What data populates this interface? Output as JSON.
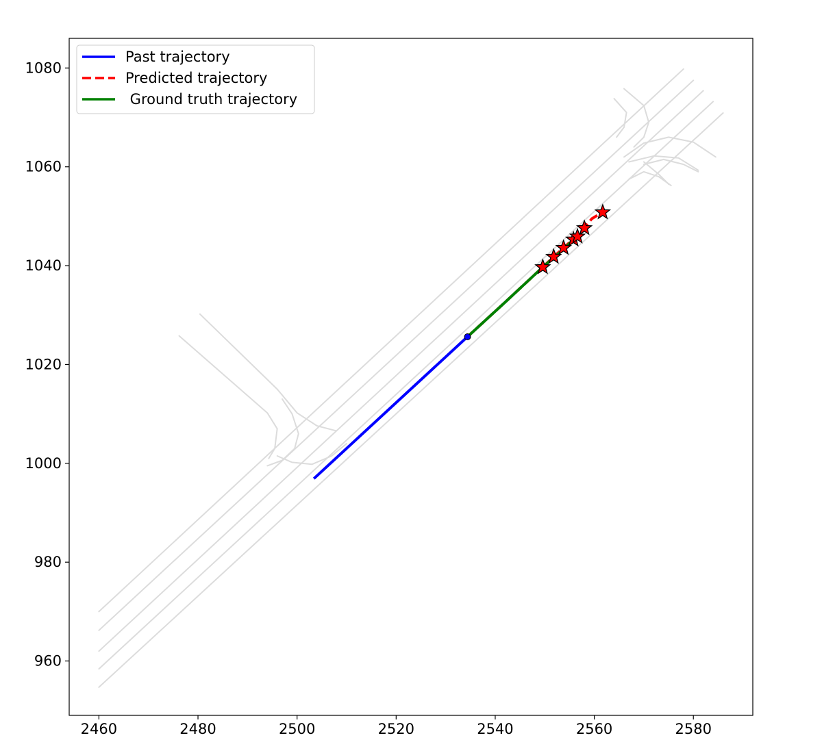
{
  "chart_data": {
    "type": "line",
    "title": "",
    "xlabel": "",
    "ylabel": "",
    "xlim": [
      2454,
      2592
    ],
    "ylim": [
      949,
      1086
    ],
    "xticks": [
      2460,
      2480,
      2500,
      2520,
      2540,
      2560,
      2580
    ],
    "yticks": [
      960,
      980,
      1000,
      1020,
      1040,
      1060,
      1080
    ],
    "grid": false,
    "legend_position": "top-left",
    "colors": {
      "past": "#0000ff",
      "predicted": "#ff0000",
      "ground_truth": "#008000",
      "map": "#dcdcdc",
      "star_fill": "#ff0000",
      "star_edge": "#000000"
    },
    "series": [
      {
        "name": "Past trajectory",
        "style": "solid",
        "x": [
          2503.6,
          2534.4
        ],
        "y": [
          997.1,
          1025.6
        ]
      },
      {
        "name": "Predicted trajectory",
        "style": "dashed",
        "x": [
          2534.4,
          2542.0,
          2549.6,
          2551.8,
          2553.8,
          2555.7,
          2556.6,
          2557.9,
          2559.5,
          2561.6
        ],
        "y": [
          1025.6,
          1032.6,
          1039.7,
          1041.8,
          1043.6,
          1045.3,
          1046.0,
          1047.6,
          1049.5,
          1050.8
        ]
      },
      {
        "name": " Ground truth trajectory",
        "style": "solid",
        "x": [
          2534.4,
          2542.0,
          2549.6,
          2551.8,
          2553.8,
          2555.2,
          2556.5
        ],
        "y": [
          1025.6,
          1032.6,
          1039.7,
          1041.6,
          1043.3,
          1044.7,
          1045.9
        ]
      }
    ],
    "predicted_markers": {
      "x": [
        2549.6,
        2551.8,
        2553.8,
        2555.8,
        2556.6,
        2558.0,
        2561.7
      ],
      "y": [
        1039.7,
        1041.8,
        1043.6,
        1045.3,
        1045.9,
        1047.6,
        1050.8
      ]
    },
    "current_position": {
      "x": 2534.4,
      "y": 1025.6
    },
    "map_lanes": [
      {
        "x": [
          2460.0,
          2578.0
        ],
        "y": [
          970.0,
          1079.8
        ]
      },
      {
        "x": [
          2460.0,
          2580.0
        ],
        "y": [
          966.2,
          1077.5
        ]
      },
      {
        "x": [
          2460.0,
          2582.0
        ],
        "y": [
          962.0,
          1075.4
        ]
      },
      {
        "x": [
          2460.0,
          2584.0
        ],
        "y": [
          958.4,
          1073.2
        ]
      },
      {
        "x": [
          2460.0,
          2586.0
        ],
        "y": [
          954.7,
          1070.9
        ]
      },
      {
        "x": [
          2476.2,
          2494.0,
          2496.0,
          2495.5,
          2494.3
        ],
        "y": [
          1025.8,
          1010.2,
          1007.0,
          1003.0,
          1001.0
        ]
      },
      {
        "x": [
          2480.4,
          2496.0,
          2500.0,
          2504.0,
          2507.8
        ],
        "y": [
          1030.2,
          1015.0,
          1010.2,
          1007.6,
          1006.6
        ]
      },
      {
        "x": [
          2497.0,
          2499.0,
          2500.3,
          2499.5,
          2497.0,
          2494.0
        ],
        "y": [
          1013.0,
          1010.0,
          1006.0,
          1003.0,
          1000.6,
          999.5
        ]
      },
      {
        "x": [
          2496.0,
          2499.0,
          2503.0,
          2507.0,
          2510.0
        ],
        "y": [
          1001.5,
          1000.2,
          999.8,
          1001.5,
          1004.0
        ]
      },
      {
        "x": [
          2566.0,
          2570.0,
          2571.0,
          2570.0,
          2568.0
        ],
        "y": [
          1075.8,
          1072.4,
          1069.0,
          1066.0,
          1064.0
        ]
      },
      {
        "x": [
          2564.0,
          2566.5,
          2566.0,
          2564.5
        ],
        "y": [
          1073.8,
          1071.0,
          1068.0,
          1066.0
        ]
      },
      {
        "x": [
          2566.0,
          2570.0,
          2575.0,
          2580.0,
          2584.5
        ],
        "y": [
          1062.0,
          1064.8,
          1066.0,
          1065.0,
          1062.0
        ]
      },
      {
        "x": [
          2570.0,
          2574.0,
          2578.0,
          2581.0
        ],
        "y": [
          1060.5,
          1061.5,
          1060.5,
          1059.0
        ]
      },
      {
        "x": [
          2567.0,
          2572.0,
          2577.0,
          2581.0
        ],
        "y": [
          1061.0,
          1062.2,
          1061.8,
          1059.3
        ]
      },
      {
        "x": [
          2567.0,
          2570.0,
          2573.0,
          2575.5
        ],
        "y": [
          1057.5,
          1059.0,
          1058.0,
          1056.2
        ]
      },
      {
        "x": [
          2570.0,
          2573.0,
          2575.0
        ],
        "y": [
          1061.0,
          1058.5,
          1056.5
        ]
      }
    ]
  }
}
